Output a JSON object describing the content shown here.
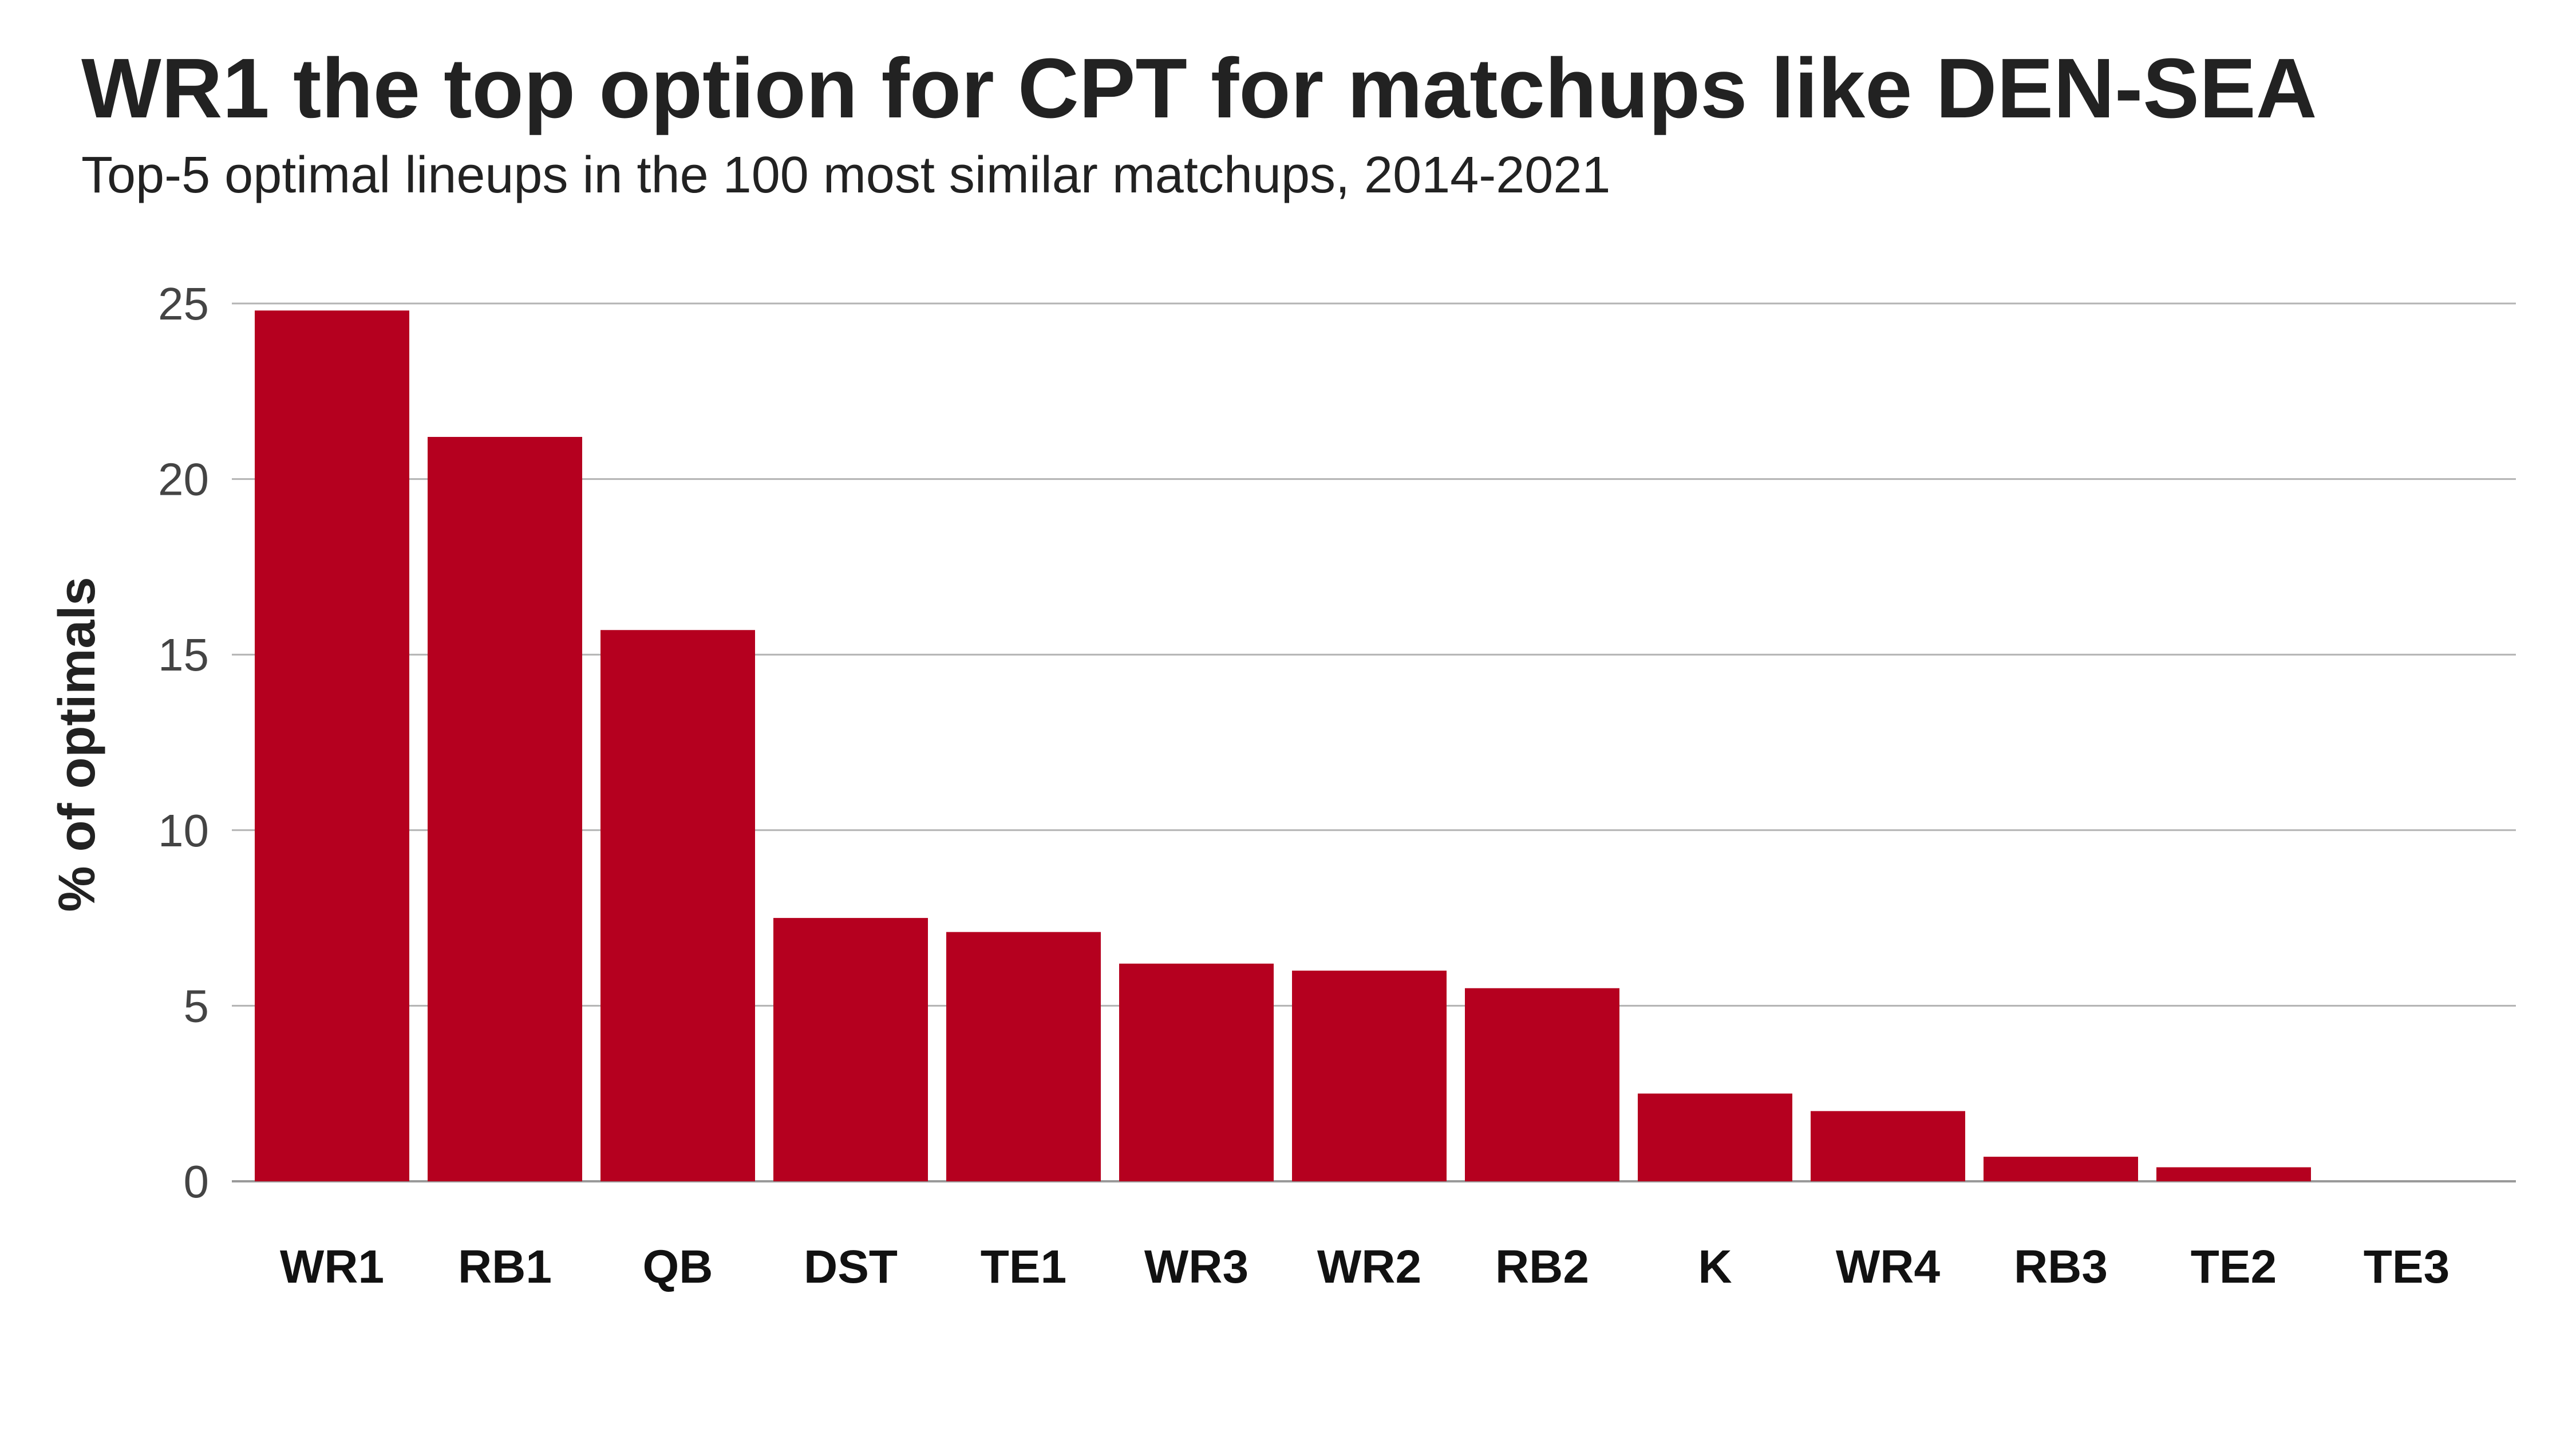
{
  "chart_data": {
    "type": "bar",
    "title": "WR1 the top option for CPT for matchups like DEN-SEA",
    "subtitle": "Top-5 optimal lineups in the 100 most similar matchups, 2014-2021",
    "xlabel": "",
    "ylabel": "% of optimals",
    "categories": [
      "WR1",
      "RB1",
      "QB",
      "DST",
      "TE1",
      "WR3",
      "WR2",
      "RB2",
      "K",
      "WR4",
      "RB3",
      "TE2",
      "TE3"
    ],
    "values": [
      24.8,
      21.2,
      15.7,
      7.5,
      7.1,
      6.2,
      6.0,
      5.5,
      2.5,
      2.0,
      0.7,
      0.4,
      0.0
    ],
    "ylim": [
      0,
      25
    ],
    "yticks": [
      0,
      5,
      10,
      15,
      20,
      25
    ],
    "grid": true,
    "legend": "none",
    "colors": {
      "bar": "#b5001f",
      "grid": "#b3b3b3",
      "baseline": "#999999"
    }
  }
}
